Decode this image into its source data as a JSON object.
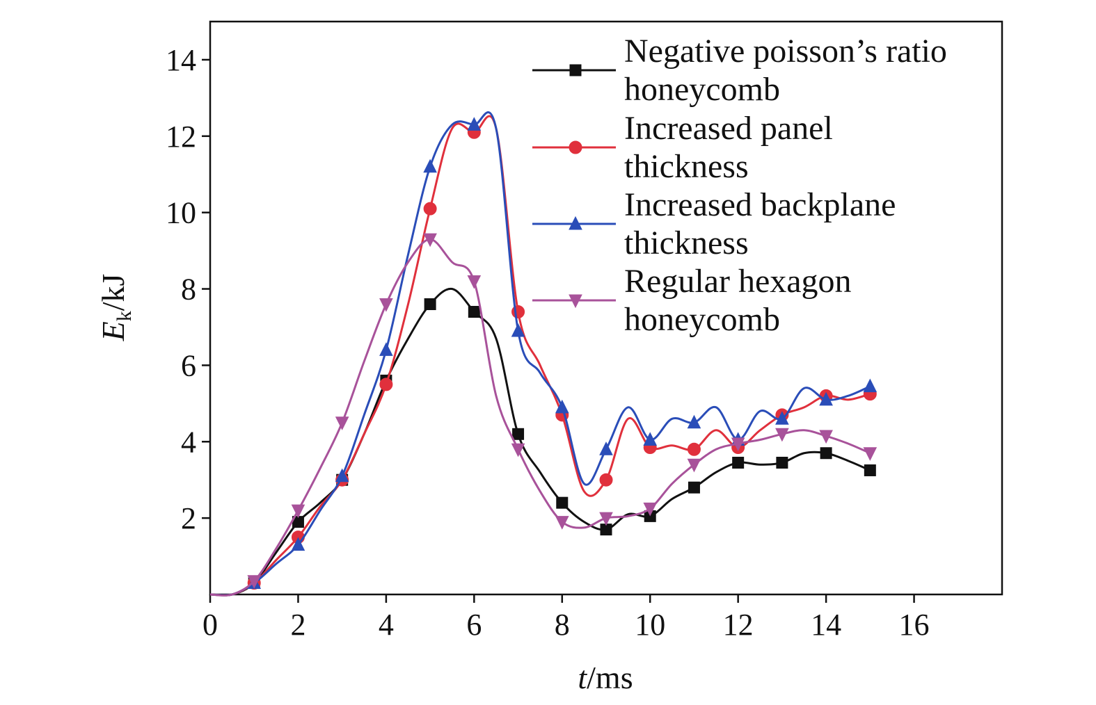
{
  "chart_data": {
    "type": "line",
    "xlabel": {
      "italic": "t",
      "rest": "/ms"
    },
    "ylabel": {
      "italic": "E",
      "sub": "k",
      "rest": "/kJ"
    },
    "xlim": [
      0,
      18
    ],
    "ylim": [
      0,
      15
    ],
    "xticks": [
      0,
      2,
      4,
      6,
      8,
      10,
      12,
      14,
      16
    ],
    "yticks": [
      2,
      4,
      6,
      8,
      10,
      12,
      14
    ],
    "x_tick_labels": [
      "0",
      "2",
      "4",
      "6",
      "8",
      "10",
      "12",
      "14",
      "16"
    ],
    "y_tick_labels": [
      "2",
      "4",
      "6",
      "8",
      "10",
      "12",
      "14"
    ],
    "grid": false,
    "legend_position": "top-right",
    "series": [
      {
        "name": "Negative poisson’s ratio honeycomb",
        "label_lines": [
          "Negative poisson’s ratio",
          "honeycomb"
        ],
        "color": "#111111",
        "marker": "square",
        "x": [
          0,
          0.5,
          1,
          1.5,
          2,
          2.5,
          3,
          3.5,
          4,
          4.5,
          5,
          5.5,
          6,
          6.5,
          7,
          7.5,
          8,
          8.5,
          9,
          9.5,
          10,
          10.5,
          11,
          11.5,
          12,
          12.5,
          13,
          13.5,
          14,
          14.5,
          15
        ],
        "y": [
          0,
          0,
          0.3,
          1.1,
          1.9,
          2.4,
          3.0,
          4.2,
          5.6,
          6.7,
          7.6,
          8.0,
          7.4,
          6.7,
          4.2,
          3.2,
          2.4,
          1.9,
          1.7,
          2.1,
          2.05,
          2.5,
          2.8,
          3.2,
          3.45,
          3.4,
          3.45,
          3.7,
          3.7,
          3.5,
          3.25
        ],
        "markers_x": [
          1,
          2,
          3,
          4,
          5,
          6,
          7,
          8,
          9,
          10,
          11,
          12,
          13,
          14,
          15
        ]
      },
      {
        "name": "Increased panel thickness",
        "label_lines": [
          "Increased panel",
          "thickness"
        ],
        "color": "#e0303c",
        "marker": "circle",
        "x": [
          0,
          0.5,
          1,
          1.5,
          2,
          2.5,
          3,
          3.5,
          4,
          4.5,
          5,
          5.5,
          6,
          6.5,
          7,
          7.5,
          8,
          8.5,
          9,
          9.5,
          10,
          10.5,
          11,
          11.5,
          12,
          12.5,
          13,
          13.5,
          14,
          14.5,
          15
        ],
        "y": [
          0,
          0,
          0.3,
          0.9,
          1.5,
          2.3,
          3.0,
          4.2,
          5.5,
          7.6,
          10.1,
          12.2,
          12.1,
          12.2,
          7.4,
          6.0,
          4.7,
          2.7,
          3.0,
          4.6,
          3.85,
          3.9,
          3.8,
          4.3,
          3.85,
          4.3,
          4.7,
          4.9,
          5.2,
          5.1,
          5.25
        ],
        "markers_x": [
          1,
          2,
          3,
          4,
          5,
          6,
          7,
          8,
          9,
          10,
          11,
          12,
          13,
          14,
          15
        ]
      },
      {
        "name": "Increased backplane thickness",
        "label_lines": [
          "Increased backplane",
          "thickness"
        ],
        "color": "#2a4db8",
        "marker": "triangle-up",
        "x": [
          0,
          0.5,
          1,
          1.5,
          2,
          2.5,
          3,
          3.5,
          4,
          4.5,
          5,
          5.5,
          6,
          6.5,
          7,
          7.5,
          8,
          8.5,
          9,
          9.5,
          10,
          10.5,
          11,
          11.5,
          12,
          12.5,
          13,
          13.5,
          14,
          14.5,
          15
        ],
        "y": [
          0,
          0,
          0.3,
          0.8,
          1.3,
          2.2,
          3.1,
          4.7,
          6.4,
          8.9,
          11.2,
          12.3,
          12.3,
          12.2,
          6.9,
          5.8,
          4.9,
          2.9,
          3.8,
          4.9,
          4.05,
          4.6,
          4.5,
          4.9,
          4.05,
          4.8,
          4.6,
          5.4,
          5.1,
          5.2,
          5.45
        ],
        "markers_x": [
          1,
          2,
          3,
          4,
          5,
          6,
          7,
          8,
          9,
          10,
          11,
          12,
          13,
          14,
          15
        ]
      },
      {
        "name": "Regular hexagon honeycomb",
        "label_lines": [
          "Regular hexagon",
          "honeycomb"
        ],
        "color": "#a8529a",
        "marker": "triangle-down",
        "x": [
          0,
          0.5,
          1,
          1.5,
          2,
          2.5,
          3,
          3.5,
          4,
          4.5,
          5,
          5.5,
          6,
          6.5,
          7,
          7.5,
          8,
          8.5,
          9,
          9.5,
          10,
          10.5,
          11,
          11.5,
          12,
          12.5,
          13,
          13.5,
          14,
          14.5,
          15
        ],
        "y": [
          0,
          0,
          0.35,
          1.2,
          2.2,
          3.3,
          4.5,
          6.1,
          7.6,
          8.7,
          9.3,
          8.7,
          8.2,
          5.2,
          3.8,
          2.7,
          1.9,
          1.75,
          2.0,
          2.05,
          2.25,
          2.9,
          3.4,
          3.8,
          3.95,
          4.05,
          4.2,
          4.3,
          4.15,
          3.95,
          3.7
        ],
        "markers_x": [
          1,
          2,
          3,
          4,
          5,
          6,
          7,
          8,
          9,
          10,
          11,
          12,
          13,
          14,
          15
        ]
      }
    ]
  }
}
